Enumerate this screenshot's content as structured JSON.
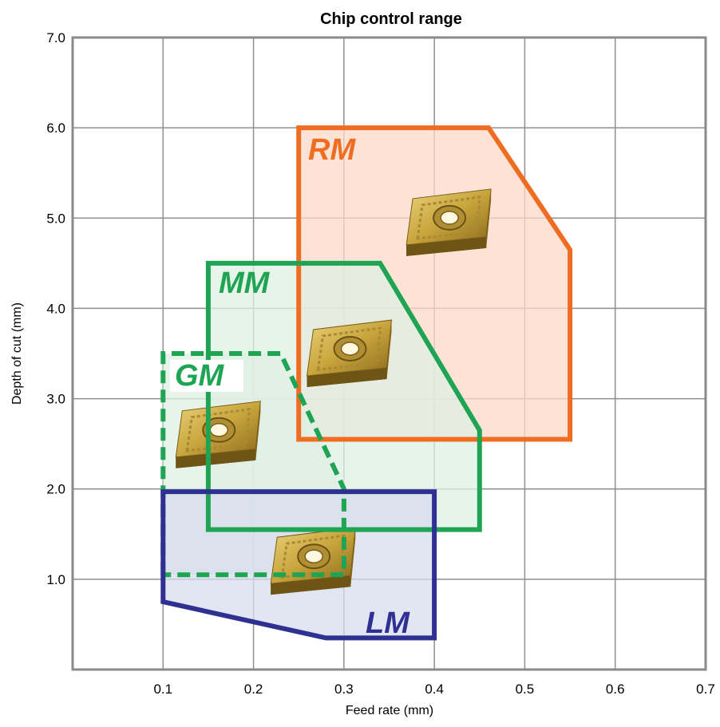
{
  "chart_data": {
    "type": "area",
    "title": "Chip control range",
    "xlabel": "Feed rate (mm)",
    "ylabel": "Depth of cut (mm)",
    "xlim": [
      0,
      0.7
    ],
    "ylim": [
      0,
      7.0
    ],
    "x_ticks": [
      "0.1",
      "0.2",
      "0.3",
      "0.4",
      "0.5",
      "0.6",
      "0.7"
    ],
    "x_tick_values": [
      0.1,
      0.2,
      0.3,
      0.4,
      0.5,
      0.6,
      0.7
    ],
    "y_ticks": [
      "1.0",
      "2.0",
      "3.0",
      "4.0",
      "5.0",
      "6.0",
      "7.0"
    ],
    "y_tick_values": [
      1,
      2,
      3,
      4,
      5,
      6,
      7
    ],
    "grid": true,
    "series": [
      {
        "name": "RM",
        "color": "#ef6c23",
        "fill": "#fbd9c8",
        "line_style": "solid",
        "points": [
          [
            0.25,
            2.55
          ],
          [
            0.25,
            6.0
          ],
          [
            0.46,
            6.0
          ],
          [
            0.55,
            4.65
          ],
          [
            0.55,
            2.55
          ]
        ]
      },
      {
        "name": "MM",
        "color": "#1ea453",
        "fill": "#dff0e3",
        "line_style": "solid",
        "points": [
          [
            0.15,
            1.55
          ],
          [
            0.15,
            4.5
          ],
          [
            0.34,
            4.5
          ],
          [
            0.45,
            2.65
          ],
          [
            0.45,
            1.55
          ]
        ]
      },
      {
        "name": "GM",
        "color": "#1ea453",
        "fill": "#dff0e3",
        "line_style": "dashed",
        "points": [
          [
            0.1,
            1.05
          ],
          [
            0.1,
            3.5
          ],
          [
            0.23,
            3.5
          ],
          [
            0.3,
            2.0
          ],
          [
            0.3,
            1.05
          ]
        ]
      },
      {
        "name": "LM",
        "color": "#2e3192",
        "fill": "#d8dcee",
        "line_style": "solid",
        "points": [
          [
            0.1,
            0.75
          ],
          [
            0.1,
            1.97
          ],
          [
            0.4,
            1.97
          ],
          [
            0.4,
            0.35
          ],
          [
            0.28,
            0.35
          ]
        ]
      }
    ],
    "insert_icons": [
      {
        "name": "rm-insert-icon",
        "x": 0.415,
        "y": 4.95
      },
      {
        "name": "mm-insert-icon",
        "x": 0.305,
        "y": 3.5
      },
      {
        "name": "gm-insert-icon",
        "x": 0.16,
        "y": 2.6
      },
      {
        "name": "lm-insert-icon",
        "x": 0.265,
        "y": 1.2
      }
    ]
  }
}
